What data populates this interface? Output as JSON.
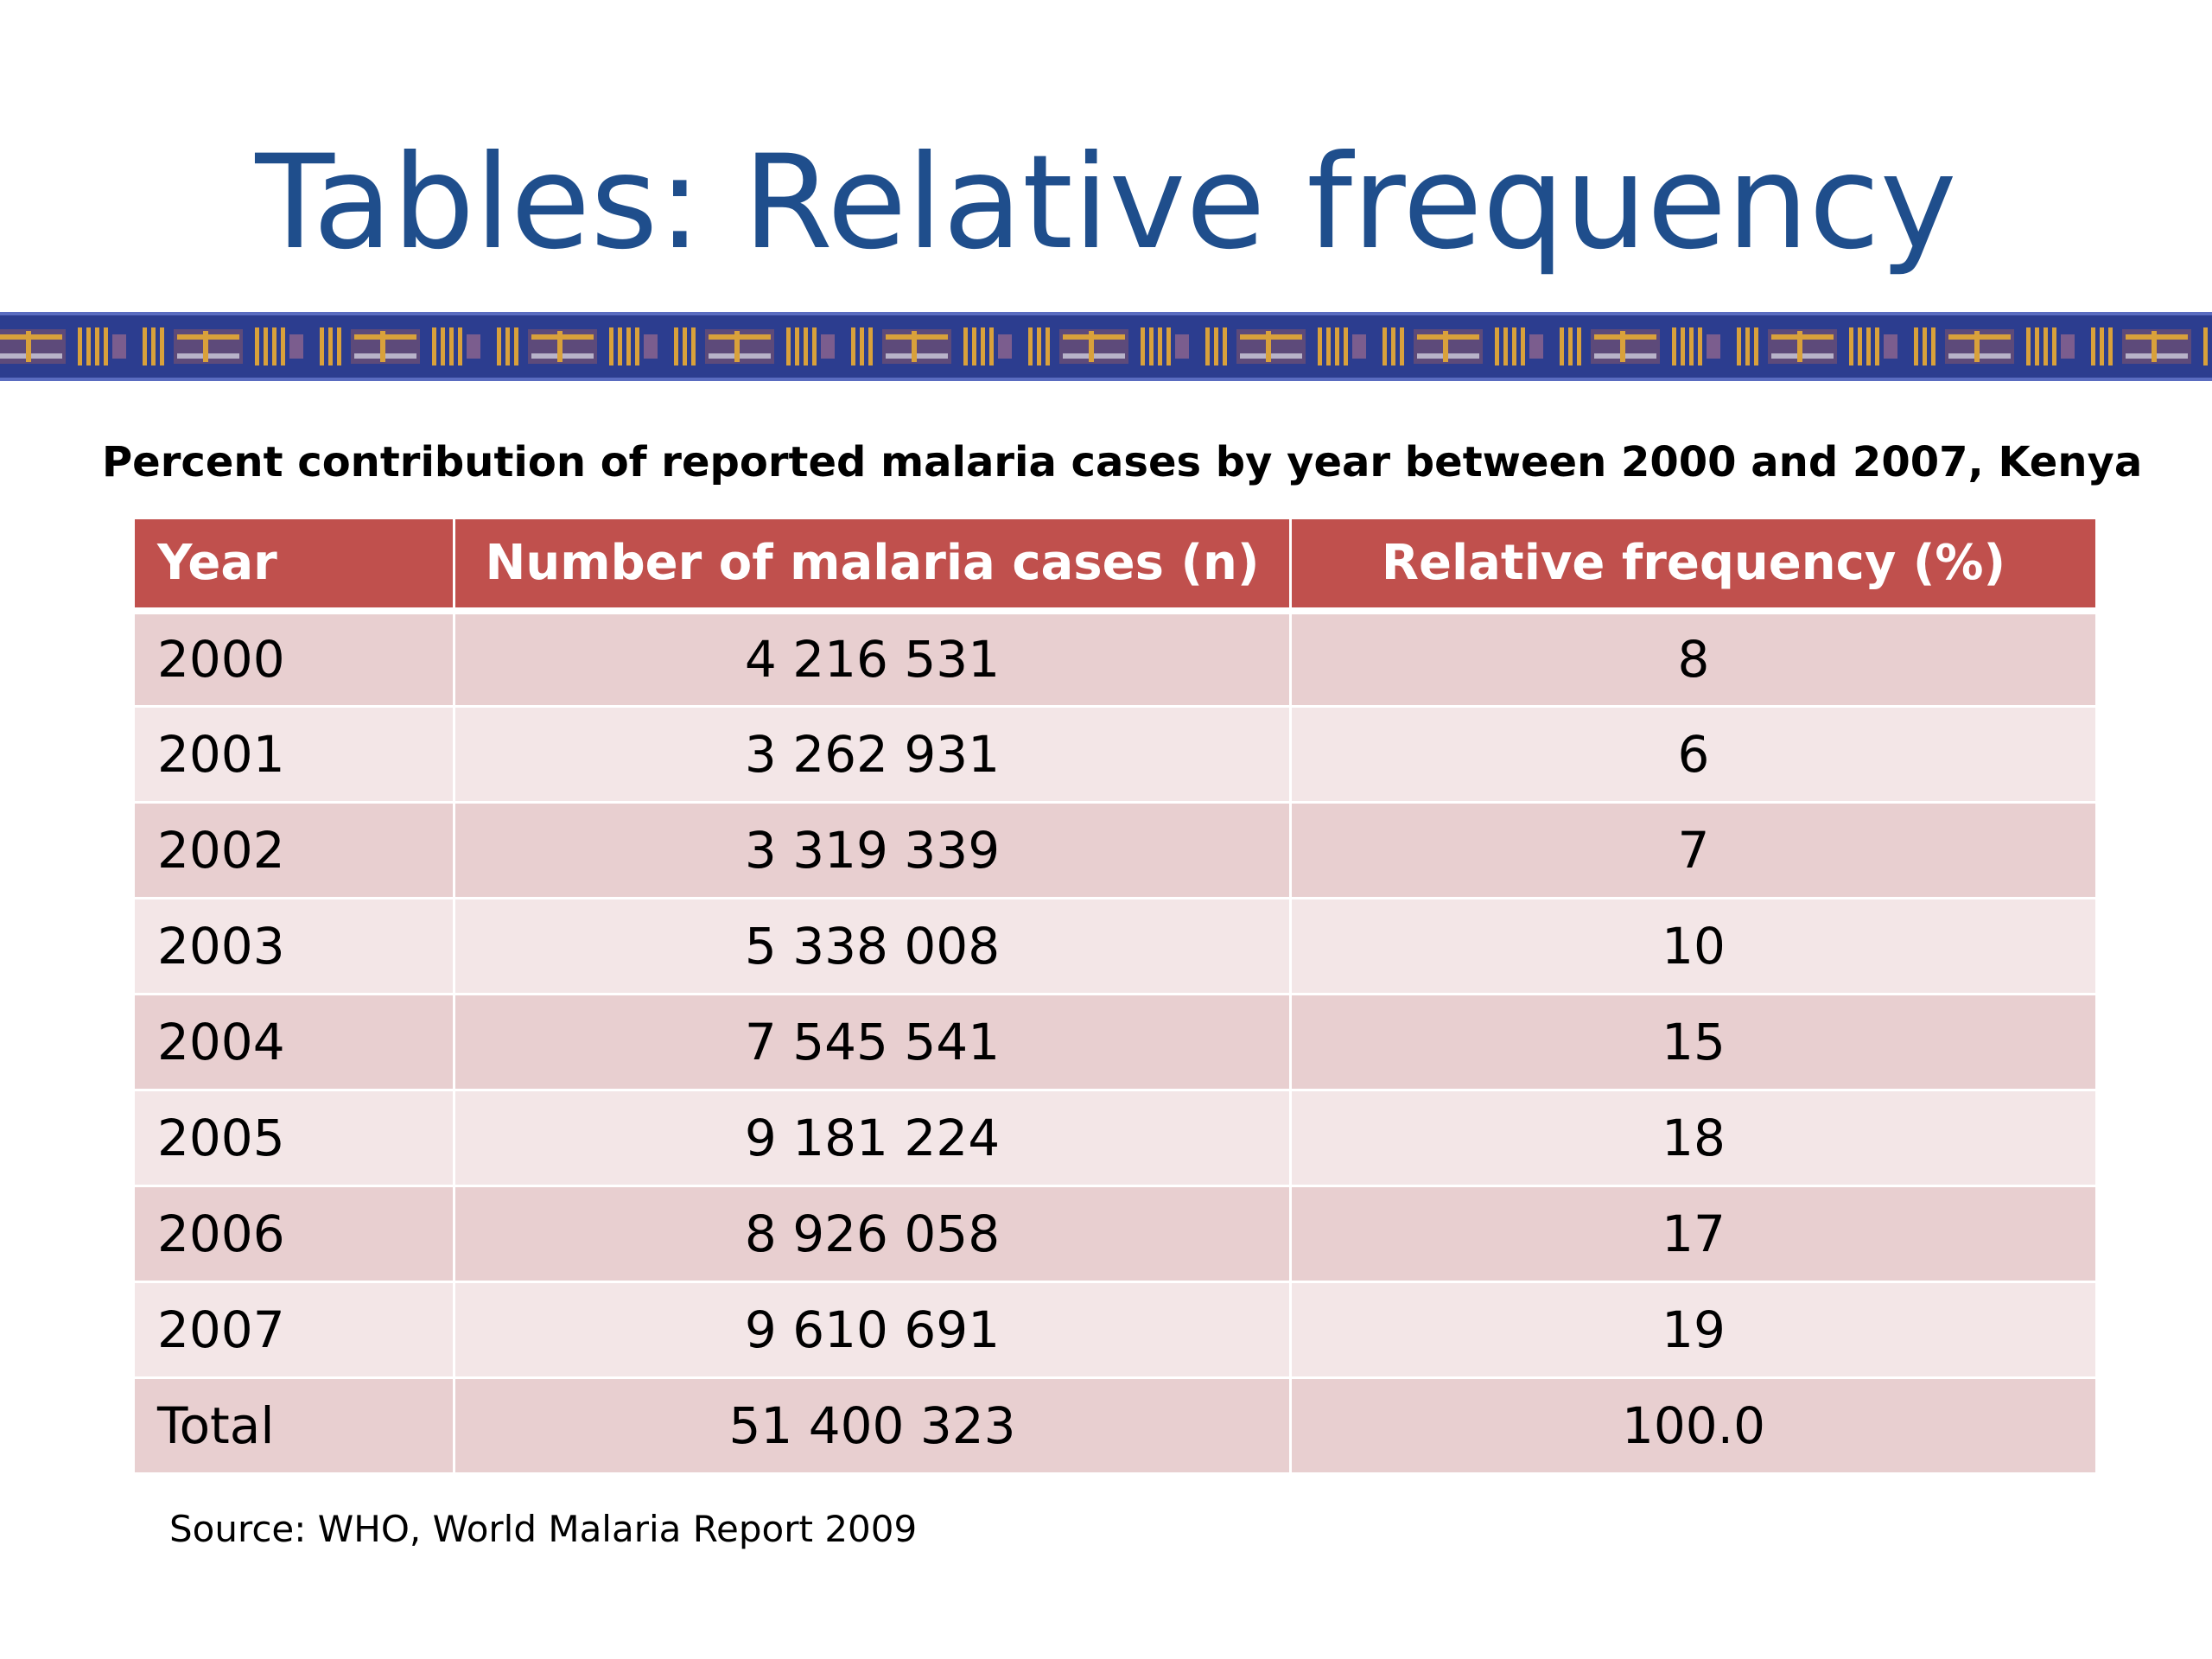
{
  "slide": {
    "title": "Tables: Relative frequency",
    "caption": "Percent contribution of reported malaria cases by year between 2000 and 2007, Kenya",
    "source": "Source: WHO, World Malaria Report 2009"
  },
  "colors": {
    "title": "#1f4e8c",
    "banner_background": "#2c3d8f",
    "banner_accent": "#d9a13b",
    "header_background": "#c0504d",
    "row_band_dark": "#e8cfd0",
    "row_band_light": "#f3e6e7"
  },
  "table": {
    "headers": [
      "Year",
      "Number of malaria cases (n)",
      "Relative frequency  (%)"
    ],
    "rows": [
      [
        "2000",
        "4 216 531",
        "8"
      ],
      [
        "2001",
        "3 262 931",
        "6"
      ],
      [
        "2002",
        "3 319 339",
        "7"
      ],
      [
        "2003",
        "5 338 008",
        "10"
      ],
      [
        "2004",
        "7 545 541",
        "15"
      ],
      [
        "2005",
        "9 181 224",
        "18"
      ],
      [
        "2006",
        "8 926 058",
        "17"
      ],
      [
        "2007",
        "9 610 691",
        "19"
      ],
      [
        "Total",
        "51 400 323",
        "100.0"
      ]
    ]
  }
}
